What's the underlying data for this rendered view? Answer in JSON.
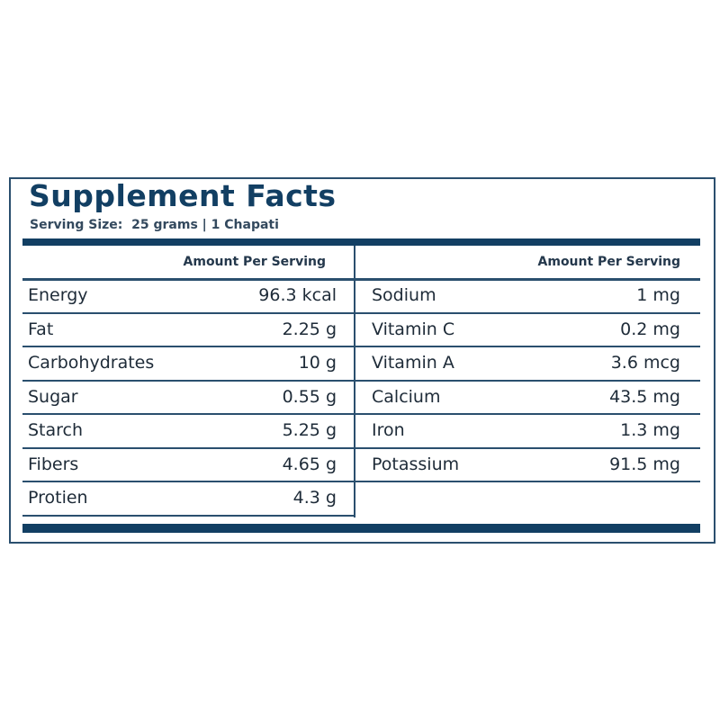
{
  "title": "Supplement Facts",
  "serving_size": "Serving Size:  25 grams | 1 Chapati",
  "left": {
    "header": "Amount Per Serving",
    "rows": [
      [
        "Energy",
        "96.3 kcal"
      ],
      [
        "Fat",
        "2.25 g"
      ],
      [
        "Carbohydrates",
        "10 g"
      ],
      [
        "Sugar",
        "0.55 g"
      ],
      [
        "Starch",
        "5.25 g"
      ],
      [
        "Fibers",
        "4.65 g"
      ],
      [
        "Protien",
        "4.3 g"
      ]
    ]
  },
  "right": {
    "header": "Amount Per Serving",
    "rows": [
      [
        "Sodium",
        "1 mg"
      ],
      [
        "Vitamin C",
        "0.2 mg"
      ],
      [
        "Vitamin A",
        "3.6 mcg"
      ],
      [
        "Calcium",
        "43.5 mg"
      ],
      [
        "Iron",
        "1.3 mg"
      ],
      [
        "Potassium",
        "91.5 mg"
      ]
    ]
  }
}
